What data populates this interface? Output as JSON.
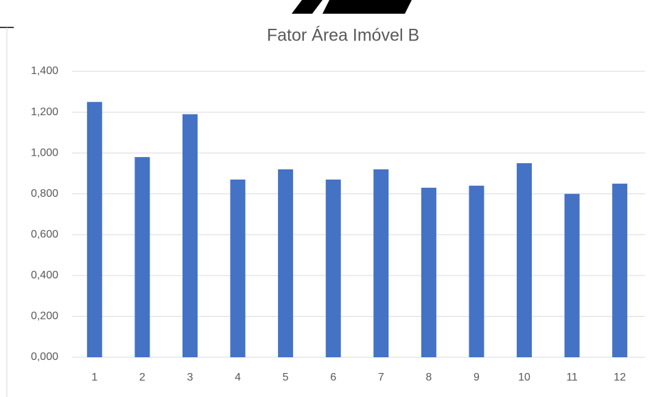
{
  "chart_data": {
    "type": "bar",
    "title": "Fator Área Imóvel B",
    "categories": [
      "1",
      "2",
      "3",
      "4",
      "5",
      "6",
      "7",
      "8",
      "9",
      "10",
      "11",
      "12"
    ],
    "values": [
      1.25,
      0.98,
      1.19,
      0.87,
      0.92,
      0.87,
      0.92,
      0.83,
      0.84,
      0.95,
      0.8,
      0.85
    ],
    "color": "#4472c4",
    "ylim": [
      0,
      1.4
    ],
    "yticks": [
      {
        "value": 0,
        "label": "0,000"
      },
      {
        "value": 0.2,
        "label": "0,200"
      },
      {
        "value": 0.4,
        "label": "0,400"
      },
      {
        "value": 0.6,
        "label": "0,600"
      },
      {
        "value": 0.8,
        "label": "0,800"
      },
      {
        "value": 1.0,
        "label": "1,000"
      },
      {
        "value": 1.2,
        "label": "1,200"
      },
      {
        "value": 1.4,
        "label": "1,400"
      }
    ],
    "grid": true
  }
}
